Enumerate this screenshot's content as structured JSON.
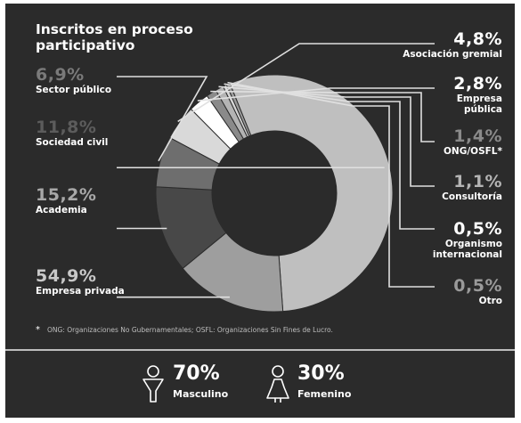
{
  "title": "Inscritos en proceso participativo",
  "footnote": {
    "mark": "*",
    "text": "ONG: Organizaciones No Gubernamentales; OSFL: Organizaciones Sin Fines de Lucro."
  },
  "chart_data": {
    "type": "pie",
    "donut": true,
    "slices": [
      {
        "label": "Asociación gremial",
        "value_label": "4,8%",
        "value": 4.8,
        "color": "#d9d9d9",
        "value_color": "#ffffff"
      },
      {
        "label": "Empresa pública",
        "value_label": "2,8%",
        "value": 2.8,
        "color": "#ffffff",
        "value_color": "#ffffff"
      },
      {
        "label": "ONG/OSFL*",
        "value_label": "1,4%",
        "value": 1.4,
        "color": "#8a8a8a",
        "value_color": "#8a8a8a"
      },
      {
        "label": "Consultoría",
        "value_label": "1,1%",
        "value": 1.1,
        "color": "#b4b4b4",
        "value_color": "#b4b4b4"
      },
      {
        "label": "Organismo internacional",
        "value_label": "0,5%",
        "value": 0.5,
        "color": "#d6d6d6",
        "value_color": "#ffffff"
      },
      {
        "label": "Otro",
        "value_label": "0,5%",
        "value": 0.5,
        "color": "#9a9a9a",
        "value_color": "#9a9a9a"
      },
      {
        "label": "Empresa privada",
        "value_label": "54,9%",
        "value": 54.9,
        "color": "#bfbfbf",
        "value_color": "#c8c8c8"
      },
      {
        "label": "Academia",
        "value_label": "15,2%",
        "value": 15.2,
        "color": "#9e9e9e",
        "value_color": "#a8a8a8"
      },
      {
        "label": "Sociedad civil",
        "value_label": "11,8%",
        "value": 11.8,
        "color": "#484848",
        "value_color": "#5c5c5c"
      },
      {
        "label": "Sector público",
        "value_label": "6,9%",
        "value": 6.9,
        "color": "#6e6e6e",
        "value_color": "#7a7a7a"
      }
    ]
  },
  "gender": [
    {
      "percent": "70%",
      "label": "Masculino",
      "icon": "male-person-icon"
    },
    {
      "percent": "30%",
      "label": "Femenino",
      "icon": "female-person-icon"
    }
  ]
}
